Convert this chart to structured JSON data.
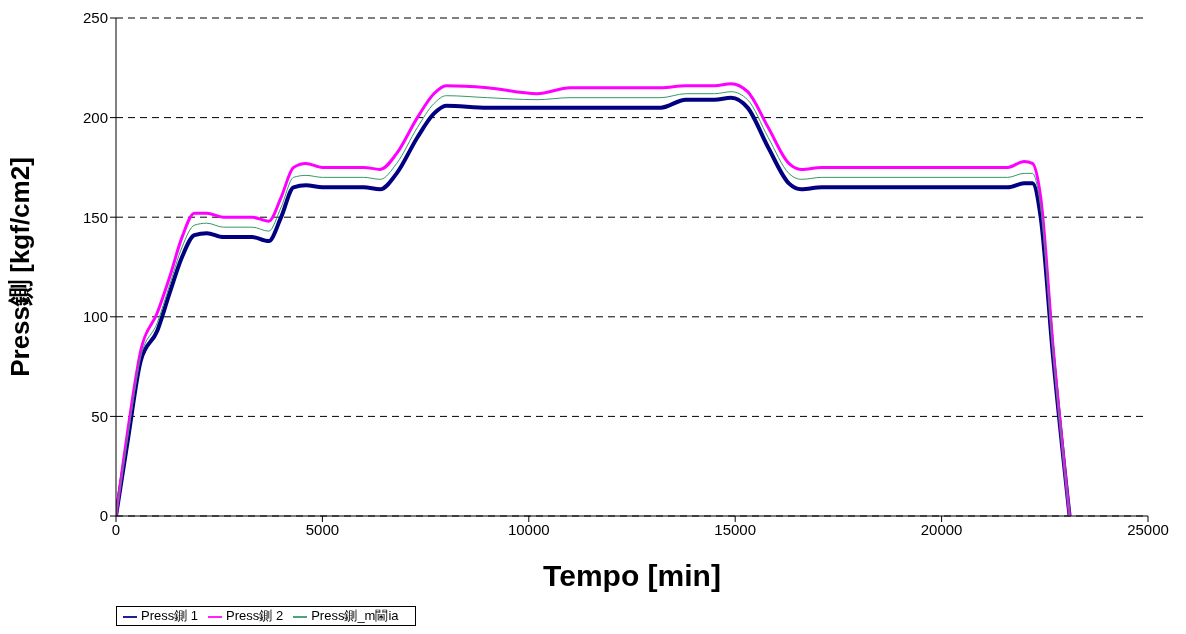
{
  "chart_data": {
    "type": "line",
    "xlabel": "Tempo [min]",
    "ylabel": "Press鍘 [kgf/cm2]",
    "x": [
      0,
      300,
      600,
      1000,
      1300,
      1600,
      1900,
      2200,
      2600,
      3300,
      3700,
      4000,
      4300,
      4600,
      5000,
      6000,
      6400,
      6800,
      7300,
      7700,
      8000,
      9000,
      10200,
      11000,
      13200,
      13800,
      14500,
      14900,
      15300,
      15800,
      16300,
      16600,
      17100,
      21600,
      22000,
      22200,
      22400,
      22700,
      23100
    ],
    "series": [
      {
        "name": "Press鍘 1",
        "color": "#000080",
        "values": [
          0,
          40,
          78,
          93,
          112,
          130,
          141,
          142,
          140,
          140,
          138,
          150,
          165,
          166,
          165,
          165,
          164,
          172,
          190,
          202,
          206,
          205,
          205,
          205,
          205,
          209,
          209,
          210,
          205,
          185,
          167,
          164,
          165,
          165,
          167,
          167,
          150,
          80,
          0
        ]
      },
      {
        "name": "Press鍘 2",
        "color": "#ff00ff",
        "values": [
          0,
          45,
          83,
          102,
          120,
          140,
          152,
          152,
          150,
          150,
          148,
          160,
          175,
          177,
          175,
          175,
          174,
          182,
          200,
          212,
          216,
          215,
          212,
          215,
          215,
          216,
          216,
          217,
          213,
          195,
          177,
          174,
          175,
          175,
          178,
          177,
          160,
          85,
          0
        ]
      },
      {
        "name": "Press鍘_m閫ia",
        "color": "#339966",
        "values": [
          0,
          42,
          80,
          97,
          116,
          135,
          146,
          147,
          145,
          145,
          143,
          155,
          170,
          171,
          170,
          170,
          169,
          177,
          195,
          207,
          211,
          210,
          209,
          210,
          210,
          212,
          212,
          213,
          209,
          190,
          172,
          169,
          170,
          170,
          172,
          172,
          155,
          82,
          0
        ]
      }
    ],
    "xlim": [
      0,
      25000
    ],
    "xticks": [
      0,
      5000,
      10000,
      15000,
      20000,
      25000
    ],
    "ylim": [
      0,
      250
    ],
    "yticks": [
      0,
      50,
      100,
      150,
      200,
      250
    ],
    "grid": "y",
    "legend": "bottom left",
    "marker": "none",
    "line_style": "solid"
  }
}
